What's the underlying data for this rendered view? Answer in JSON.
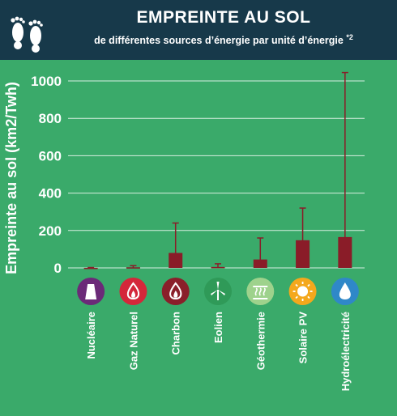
{
  "header": {
    "title": "EMPREINTE AU SOL",
    "subtitle": "de différentes sources d’énergie par unité d’énergie",
    "footnote": "*2"
  },
  "colors": {
    "background": "#3aaa6a",
    "header": "#17394a",
    "bar": "#8a1c28",
    "grid": "#ffffff"
  },
  "icons": [
    {
      "name": "nuclear-plant-icon",
      "color": "#6b2a78"
    },
    {
      "name": "gas-flame-icon",
      "color": "#d4273a"
    },
    {
      "name": "coal-flame-icon",
      "color": "#8a1f2a"
    },
    {
      "name": "wind-turbine-icon",
      "color": "#2f9a58"
    },
    {
      "name": "geothermal-icon",
      "color": "#9ed28c"
    },
    {
      "name": "sun-icon",
      "color": "#f4a81c"
    },
    {
      "name": "water-drop-icon",
      "color": "#2f88c8"
    }
  ],
  "chart_data": {
    "type": "bar",
    "title": "",
    "xlabel": "",
    "ylabel": "Empreinte au sol (km2/Twh)",
    "ylim": [
      0,
      1050
    ],
    "yticks": [
      0,
      200,
      400,
      600,
      800,
      1000
    ],
    "grid": true,
    "categories": [
      "Nucléaire",
      "Gaz Naturel",
      "Charbon",
      "Eolien",
      "Géothermie",
      "Solaire PV",
      "Hydroélectricité"
    ],
    "values": [
      0.3,
      3,
      80,
      5,
      45,
      148,
      165
    ],
    "error_high": [
      2,
      12,
      240,
      22,
      160,
      320,
      1045
    ],
    "error_low": [
      0.1,
      1,
      30,
      1,
      10,
      50,
      0
    ]
  }
}
